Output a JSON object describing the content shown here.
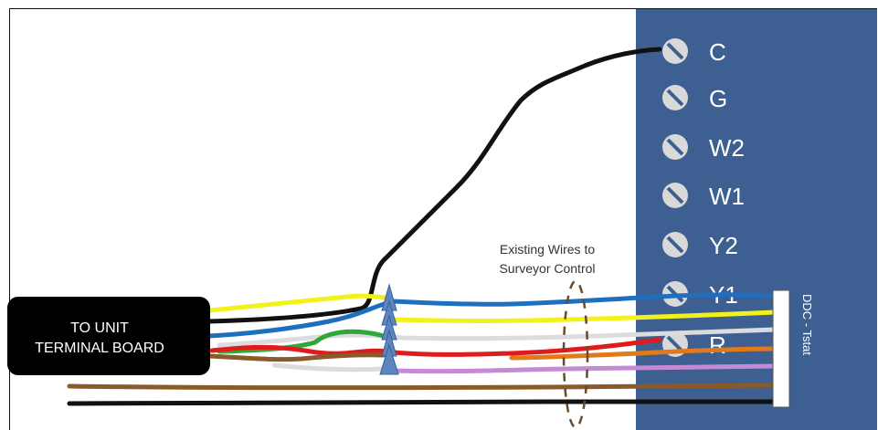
{
  "terminal_block": {
    "color": "#3d5f91",
    "terminals": [
      {
        "id": "c",
        "label": "C"
      },
      {
        "id": "g",
        "label": "G"
      },
      {
        "id": "w2",
        "label": "W2"
      },
      {
        "id": "w1",
        "label": "W1"
      },
      {
        "id": "y2",
        "label": "Y2"
      },
      {
        "id": "y1",
        "label": "Y1"
      },
      {
        "id": "r",
        "label": "R"
      }
    ]
  },
  "unit_box": {
    "line1": "TO UNIT",
    "line2": "TERMINAL BOARD"
  },
  "connector_label": "DDC - Tstat",
  "annotation": {
    "line1": "Existing Wires to",
    "line2": "Surveyor Control"
  },
  "wire_colors": {
    "black": "#111111",
    "yellow": "#f2f21a",
    "blue": "#1f6fbf",
    "green": "#2fa83a",
    "white": "#dcdcdc",
    "red": "#e01b1b",
    "orange": "#e07a1a",
    "brown": "#8a5a2b",
    "purple": "#c48ad6"
  }
}
